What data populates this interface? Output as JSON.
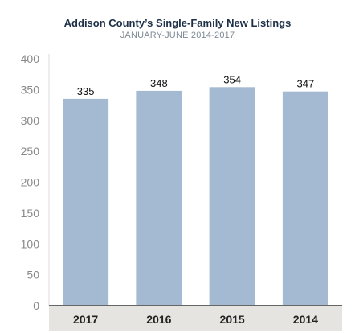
{
  "chart_data": {
    "type": "bar",
    "title": "Addison County’s Single-Family New Listings",
    "subtitle": "JANUARY-JUNE 2014-2017",
    "categories": [
      "2017",
      "2016",
      "2015",
      "2014"
    ],
    "values": [
      335,
      348,
      354,
      347
    ],
    "data_labels": [
      "335",
      "348",
      "354",
      "347"
    ],
    "ylim": [
      0,
      400
    ],
    "yticks": [
      0,
      50,
      100,
      150,
      200,
      250,
      300,
      350,
      400
    ],
    "grid": false,
    "legend": "none",
    "colors": {
      "bar": "#a4b9d2",
      "category_band": "#e6e4e0",
      "axis": "#666666"
    }
  }
}
